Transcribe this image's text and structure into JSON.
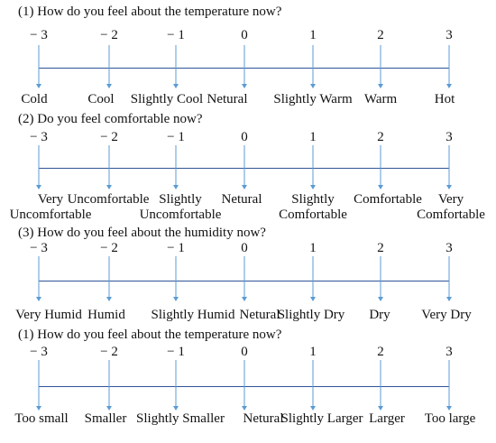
{
  "sections": [
    {
      "question": "(1) How do you feel about the temperature now?",
      "scale": [
        "− 3",
        "− 2",
        "− 1",
        "0",
        "1",
        "2",
        "3"
      ],
      "labels": [
        [
          "Cold"
        ],
        [
          "Cool"
        ],
        [
          "Slightly Cool"
        ],
        [
          "Netural"
        ],
        [
          "Slightly Warm"
        ],
        [
          "Warm"
        ],
        [
          "Hot"
        ]
      ]
    },
    {
      "question": "(2) Do you feel comfortable now?",
      "scale": [
        "− 3",
        "− 2",
        "− 1",
        "0",
        "1",
        "2",
        "3"
      ],
      "labels": [
        [
          "Very",
          "Uncomfortable"
        ],
        [
          "Uncomfortable"
        ],
        [
          "Slightly",
          "Uncomfortable"
        ],
        [
          "Netural"
        ],
        [
          "Slightly",
          "Comfortable"
        ],
        [
          "Comfortable"
        ],
        [
          "Very",
          "Comfortable"
        ]
      ]
    },
    {
      "question": "(3) How do you feel about the humidity now?",
      "scale": [
        "− 3",
        "− 2",
        "− 1",
        "0",
        "1",
        "2",
        "3"
      ],
      "labels": [
        [
          "Very Humid"
        ],
        [
          "Humid"
        ],
        [
          "Slightly Humid"
        ],
        [
          "Netural"
        ],
        [
          "Slightly Dry"
        ],
        [
          "Dry"
        ],
        [
          "Very Dry"
        ]
      ]
    },
    {
      "question": "(1) How do you feel about the temperature now?",
      "scale": [
        "− 3",
        "− 2",
        "− 1",
        "0",
        "1",
        "2",
        "3"
      ],
      "labels": [
        [
          "Too small"
        ],
        [
          "Smaller"
        ],
        [
          "Slightly Smaller"
        ],
        [
          "Netural"
        ],
        [
          "Slightly Larger"
        ],
        [
          "Larger"
        ],
        [
          "Too large"
        ]
      ]
    }
  ]
}
